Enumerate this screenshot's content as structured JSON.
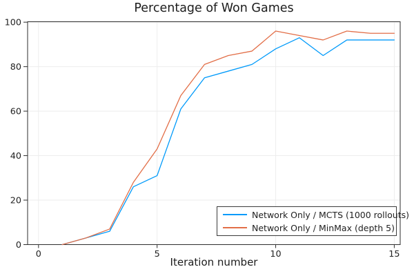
{
  "chart_data": {
    "type": "line",
    "title": "Percentage of Won Games",
    "xlabel": "Iteration number",
    "ylabel": "",
    "x": [
      1,
      2,
      3,
      4,
      5,
      6,
      7,
      8,
      9,
      10,
      11,
      12,
      13,
      14,
      15
    ],
    "series": [
      {
        "name": "Network Only / MCTS (1000 rollouts)",
        "color": "#009AFA",
        "values": [
          0,
          3,
          6,
          26,
          31,
          61,
          75,
          78,
          81,
          88,
          93,
          85,
          92,
          92,
          92
        ]
      },
      {
        "name": "Network Only / MinMax (depth 5)",
        "color": "#E26E47",
        "values": [
          0,
          3,
          7,
          28,
          43,
          67,
          81,
          85,
          87,
          96,
          94,
          92,
          96,
          95,
          95
        ]
      }
    ],
    "xlim": [
      -0.46,
      15.25
    ],
    "ylim": [
      0,
      100.2
    ],
    "x_ticks": [
      0,
      5,
      10,
      15
    ],
    "y_ticks": [
      0,
      20,
      40,
      60,
      80,
      100
    ],
    "grid": true,
    "legend_position": "bottom-right"
  },
  "colors": {
    "background": "#FFFFFF",
    "grid": "#EDEDED",
    "spine": "#2E2E2E",
    "tick_label": "#222222",
    "legend_border": "#3A3A3A"
  }
}
